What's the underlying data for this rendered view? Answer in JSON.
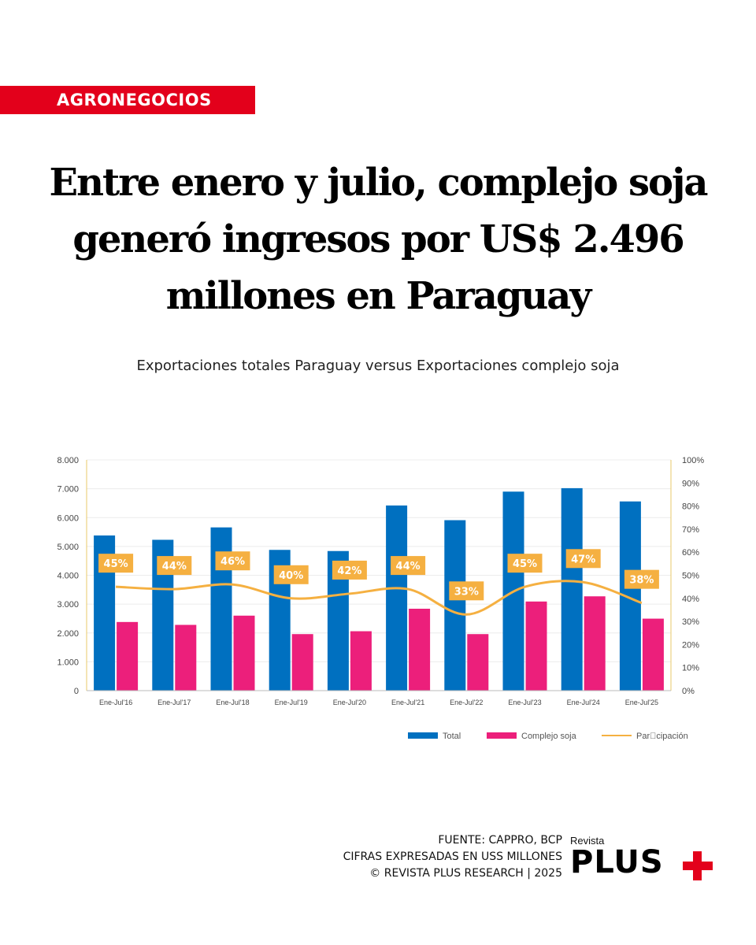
{
  "tag": "AGRONEGOCIOS",
  "headline": [
    "Entre enero y julio, complejo soja",
    "generó ingresos por US$ 2.496",
    "millones en Paraguay"
  ],
  "subtitle": "Exportaciones totales Paraguay versus Exportaciones complejo soja",
  "footer": {
    "source": "FUENTE: CAPPRO, BCP",
    "units": "CIFRAS EXPRESADAS EN USS MILLONES",
    "copyright": "© REVISTA PLUS RESEARCH | 2025"
  },
  "logo": {
    "small": "Revista",
    "big": "PLUS"
  },
  "colors": {
    "total": "#0070c0",
    "soja": "#ec1f7b",
    "line": "#f5b041",
    "label_bg": "#f5b041",
    "tag": "#e3001b"
  },
  "chart_data": {
    "type": "bar",
    "categories": [
      "Ene-Jul'16",
      "Ene-Jul'17",
      "Ene-Jul'18",
      "Ene-Jul'19",
      "Ene-Jul'20",
      "Ene-Jul'21",
      "Ene-Jul'22",
      "Ene-Jul'23",
      "Ene-Jul'24",
      "Ene-Jul'25"
    ],
    "series": [
      {
        "name": "Total",
        "type": "bar",
        "axis": "left",
        "values": [
          5380,
          5230,
          5660,
          4880,
          4840,
          6420,
          5910,
          6900,
          7020,
          6560
        ]
      },
      {
        "name": "Complejo soja",
        "type": "bar",
        "axis": "left",
        "values": [
          2380,
          2280,
          2600,
          1960,
          2060,
          2840,
          1960,
          3090,
          3270,
          2496
        ]
      },
      {
        "name": "Par\u0000cipación",
        "type": "line",
        "axis": "right",
        "values": [
          45,
          44,
          46,
          40,
          42,
          44,
          33,
          45,
          47,
          38
        ]
      }
    ],
    "data_labels": [
      "45%",
      "44%",
      "46%",
      "40%",
      "42%",
      "44%",
      "33%",
      "45%",
      "47%",
      "38%"
    ],
    "y_left": {
      "ticks": [
        "0",
        "1.000",
        "2.000",
        "3.000",
        "4.000",
        "5.000",
        "6.000",
        "7.000",
        "8.000"
      ],
      "range": [
        0,
        8000
      ]
    },
    "y_right": {
      "ticks": [
        "0%",
        "10%",
        "20%",
        "30%",
        "40%",
        "50%",
        "60%",
        "70%",
        "80%",
        "90%",
        "100%"
      ],
      "range": [
        0,
        100
      ]
    },
    "legend": [
      "Total",
      "Complejo soja",
      "Par\u0000cipación"
    ],
    "legend_position": "bottom-right",
    "grid": true
  }
}
